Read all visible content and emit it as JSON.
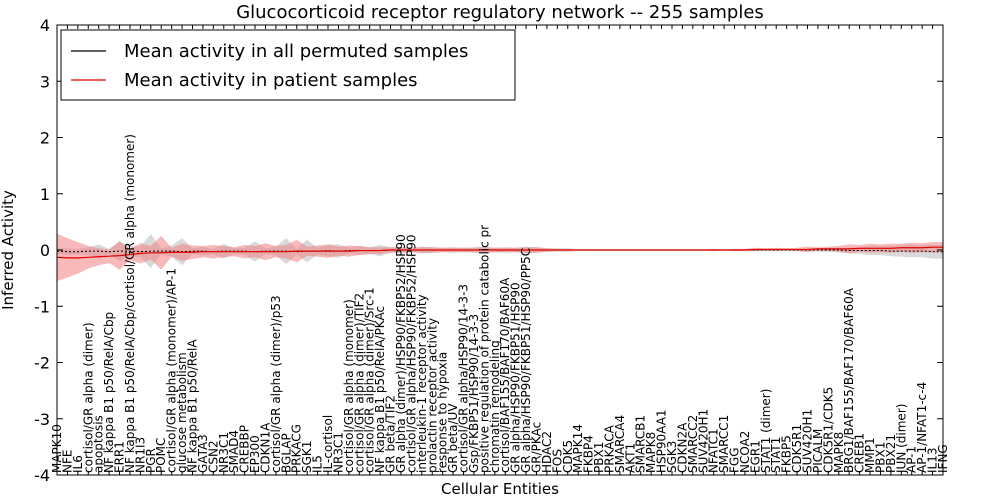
{
  "chart_data": {
    "type": "line",
    "title": "Glucocorticoid receptor regulatory network -- 255 samples",
    "xlabel": "Cellular Entities",
    "ylabel": "Inferred Activity",
    "ylim": [
      -4,
      4
    ],
    "yticks": [
      "-4",
      "-3",
      "-2",
      "-1",
      "0",
      "1",
      "2",
      "3",
      "4"
    ],
    "legend_position": "top-left",
    "legend": [
      {
        "label": "Mean activity in all permuted samples",
        "color": "#000000"
      },
      {
        "label": "Mean activity in patient samples",
        "color": "#e00000"
      }
    ],
    "band_colors": {
      "permuted": "#aaaaaa",
      "patient": "#f08080"
    },
    "categories": [
      "MAPK10",
      "NFE",
      "IL6",
      "cortisol/GR alpha (dimer)",
      "apoptosis",
      "NF kappa B1 p50/RelA/Cbp",
      "ERR1",
      "NF kappa B1 p50/RelA/Cbp/cortisol/GR alpha (monomer)",
      "NR1I3",
      "PGR",
      "POMC",
      "cortisol/GR alpha (monomer)/AP-1",
      "glucose metabolism",
      "NF kappa B1 p50/RelA",
      "GATA3",
      "CSN2",
      "NR3C1",
      "SMAD4",
      "CREBBP",
      "EP300",
      "CDKN1A",
      "cortisol/GR alpha (dimer)/p53",
      "BGLAP",
      "PRKACG",
      "SGK1",
      "IL5",
      "IL-cortisol",
      "NR3C1",
      "cortisol/GR alpha (monomer)",
      "cortisol/GR alpha (dimer)/TIF2",
      "cortisol/GR alpha (dimer)/Src-1",
      "NF kappa B1 p50/RelA/PKAc",
      "GR beta/TIF2",
      "GR alpha (dimer)/HSP90/FKBP52/HSP90",
      "cortisol/GR alpha/HSP90/FKBP52/HSP90",
      "interleukin-1 receptor activity",
      "prolactin receptor activity",
      "response to hypoxia",
      "GR beta/UV",
      "cortisol/GR alpha/HSP90/14-3-3",
      "Gsp/FKBP51/HSP90/14-3-3",
      "positive regulation of protein catabolic pr",
      "chromatin remodeling",
      "cortisol/BAF155/BAF170/BAF60A",
      "GR alpha/HSP90/FKBP51/HSP90",
      "GR alpha/HSP90/FKBP51/HSP90/PP5C",
      "GR/PKAc",
      "HDAC2",
      "FOS",
      "CDK5",
      "MAPK14",
      "FKBP4",
      "PBX1",
      "PRKACA",
      "SMARCA4",
      "AKT1",
      "SMARCB1",
      "MAPK8",
      "HSP90AA1",
      "SGK3",
      "CDKN2A",
      "SMARCC2",
      "SUV420H1",
      "NFATC1",
      "SMARCC1",
      "FGG",
      "NCOA2",
      "EGR1",
      "STAT1 (dimer)",
      "STAT1",
      "FKBP5",
      "CDK5R1",
      "SUV420H1",
      "PICALM",
      "CDK5R1/CDK5",
      "MAPK8",
      "BRG1/BAF155/BAF170/BAF60A",
      "CREB1",
      "MMP1",
      "PBX1",
      "PBX21",
      "JUN (dimer)",
      "AP-1",
      "AP-1/NFAT1-c-4",
      "IL13",
      "IFNG"
    ],
    "series": [
      {
        "name": "Mean activity in patient samples",
        "values": [
          -0.13,
          -0.14,
          -0.14,
          -0.13,
          -0.12,
          -0.11,
          -0.1,
          -0.08,
          -0.06,
          -0.05,
          -0.05,
          -0.04,
          -0.04,
          -0.04,
          -0.03,
          -0.03,
          -0.03,
          -0.03,
          -0.03,
          -0.03,
          -0.03,
          -0.03,
          -0.03,
          -0.02,
          -0.02,
          -0.02,
          -0.02,
          -0.02,
          -0.02,
          -0.01,
          -0.01,
          -0.01,
          0,
          0,
          0,
          0,
          0,
          0,
          0,
          0,
          0,
          0,
          0,
          0,
          0,
          0,
          0,
          0,
          0,
          0,
          0,
          0,
          0,
          0,
          0,
          0,
          0,
          0,
          0,
          0,
          0,
          0,
          0,
          0,
          0,
          0,
          0,
          0.01,
          0.01,
          0.01,
          0.01,
          0.01,
          0.01,
          0.02,
          0.02,
          0.02,
          0.02,
          0.03,
          0.03,
          0.03,
          0.03,
          0.04,
          0.04,
          0.04,
          0.05,
          0.05
        ]
      },
      {
        "name": "Mean activity in all permuted samples",
        "values": [
          -0.02,
          -0.03,
          -0.03,
          -0.02,
          -0.02,
          -0.03,
          -0.02,
          -0.02,
          -0.03,
          -0.02,
          -0.02,
          -0.02,
          -0.03,
          -0.02,
          -0.02,
          -0.03,
          -0.02,
          -0.02,
          -0.02,
          -0.03,
          -0.02,
          -0.02,
          -0.02,
          -0.03,
          -0.02,
          -0.02,
          -0.01,
          -0.02,
          -0.01,
          -0.01,
          -0.01,
          -0.01,
          0,
          0,
          0,
          0,
          0,
          0,
          0,
          0,
          0,
          0,
          0,
          0,
          0,
          0,
          0,
          0,
          0,
          0,
          0,
          0,
          0,
          0,
          0,
          0,
          0,
          0,
          0,
          0,
          0,
          0,
          0,
          0,
          0,
          0,
          0,
          0,
          0,
          0,
          0,
          0,
          0,
          0,
          0,
          0,
          -0.01,
          -0.01,
          -0.01,
          -0.01,
          -0.02,
          -0.02,
          -0.02,
          -0.02,
          -0.03,
          -0.03
        ]
      }
    ],
    "bands": {
      "permuted_halfwidth": [
        0.05,
        0.06,
        0.05,
        0.07,
        0.12,
        0.05,
        0.18,
        0.08,
        0.1,
        0.3,
        0.05,
        0.1,
        0.24,
        0.05,
        0.08,
        0.05,
        0.13,
        0.05,
        0.06,
        0.18,
        0.05,
        0.08,
        0.23,
        0.05,
        0.2,
        0.06,
        0.1,
        0.12,
        0.05,
        0.08,
        0.06,
        0.1,
        0.05,
        0.05,
        0.04,
        0.06,
        0.05,
        0.04,
        0.05,
        0.04,
        0.05,
        0.06,
        0.04,
        0.05,
        0.04,
        0.06,
        0.05,
        0.03,
        0.03,
        0.03,
        0.02,
        0.02,
        0.02,
        0.02,
        0.02,
        0.02,
        0.02,
        0.02,
        0.02,
        0.02,
        0.02,
        0.02,
        0.02,
        0.02,
        0.02,
        0.02,
        0.02,
        0.02,
        0.02,
        0.02,
        0.02,
        0.02,
        0.02,
        0.03,
        0.03,
        0.04,
        0.05,
        0.06,
        0.08,
        0.08,
        0.09,
        0.1,
        0.11,
        0.11,
        0.12,
        0.12
      ],
      "patient_halfwidth": [
        0.42,
        0.35,
        0.28,
        0.2,
        0.15,
        0.12,
        0.25,
        0.1,
        0.18,
        0.12,
        0.3,
        0.08,
        0.15,
        0.12,
        0.1,
        0.12,
        0.1,
        0.08,
        0.12,
        0.1,
        0.15,
        0.1,
        0.12,
        0.2,
        0.08,
        0.1,
        0.12,
        0.08,
        0.1,
        0.08,
        0.06,
        0.06,
        0.05,
        0.05,
        0.04,
        0.05,
        0.05,
        0.04,
        0.04,
        0.04,
        0.04,
        0.05,
        0.04,
        0.04,
        0.04,
        0.05,
        0.05,
        0.03,
        0.02,
        0.02,
        0.01,
        0.01,
        0.01,
        0.01,
        0.01,
        0.01,
        0.01,
        0.01,
        0.01,
        0.01,
        0.01,
        0.01,
        0.01,
        0.02,
        0.01,
        0.02,
        0.02,
        0.03,
        0.02,
        0.03,
        0.02,
        0.03,
        0.05,
        0.03,
        0.04,
        0.05,
        0.08,
        0.06,
        0.08,
        0.07,
        0.08,
        0.07,
        0.09,
        0.08,
        0.09,
        0.09
      ]
    }
  }
}
